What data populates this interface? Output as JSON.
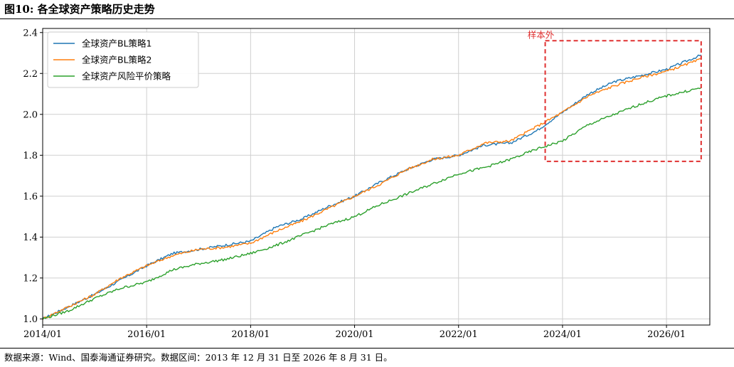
{
  "figure": {
    "title": "图10:  各全球资产策略历史走势",
    "source": "数据来源：Wind、国泰海通证券研究。数据区间：2013 年 12 月 31 日至 2026 年 8 月 31 日。"
  },
  "chart_data": {
    "type": "line",
    "title": "",
    "xlabel": "",
    "ylabel": "",
    "x_ticks": [
      "2014/01",
      "2016/01",
      "2018/01",
      "2020/01",
      "2022/01",
      "2024/01",
      "2026/01"
    ],
    "y_ticks": [
      "1.0",
      "1.2",
      "1.4",
      "1.6",
      "1.8",
      "2.0",
      "2.2",
      "2.4"
    ],
    "xlim": [
      "2014/01",
      "2026/11"
    ],
    "ylim": [
      0.97,
      2.42
    ],
    "grid": true,
    "legend_position": "top-left",
    "annotations": [
      {
        "text": "样本外",
        "box_x": [
          "2023/09",
          "2026/09"
        ],
        "box_y": [
          1.77,
          2.36
        ],
        "color": "#e03131"
      }
    ],
    "series": [
      {
        "name": "全球资产BL策略1",
        "color": "#1f77b4",
        "points": [
          [
            "2014/01",
            1.0
          ],
          [
            "2014/07",
            1.06
          ],
          [
            "2015/01",
            1.12
          ],
          [
            "2015/07",
            1.19
          ],
          [
            "2016/01",
            1.26
          ],
          [
            "2016/07",
            1.32
          ],
          [
            "2017/01",
            1.34
          ],
          [
            "2017/07",
            1.36
          ],
          [
            "2018/01",
            1.38
          ],
          [
            "2018/07",
            1.45
          ],
          [
            "2019/01",
            1.49
          ],
          [
            "2019/07",
            1.55
          ],
          [
            "2020/01",
            1.6
          ],
          [
            "2020/07",
            1.67
          ],
          [
            "2021/01",
            1.73
          ],
          [
            "2021/07",
            1.78
          ],
          [
            "2022/01",
            1.8
          ],
          [
            "2022/07",
            1.85
          ],
          [
            "2023/01",
            1.86
          ],
          [
            "2023/07",
            1.92
          ],
          [
            "2024/01",
            2.01
          ],
          [
            "2024/07",
            2.1
          ],
          [
            "2025/01",
            2.16
          ],
          [
            "2025/07",
            2.19
          ],
          [
            "2026/01",
            2.22
          ],
          [
            "2026/09",
            2.29
          ]
        ]
      },
      {
        "name": "全球资产BL策略2",
        "color": "#ff7f0e",
        "points": [
          [
            "2014/01",
            1.0
          ],
          [
            "2014/07",
            1.06
          ],
          [
            "2015/01",
            1.12
          ],
          [
            "2015/07",
            1.2
          ],
          [
            "2016/01",
            1.26
          ],
          [
            "2016/07",
            1.31
          ],
          [
            "2017/01",
            1.34
          ],
          [
            "2017/07",
            1.35
          ],
          [
            "2018/01",
            1.37
          ],
          [
            "2018/07",
            1.43
          ],
          [
            "2019/01",
            1.48
          ],
          [
            "2019/07",
            1.54
          ],
          [
            "2020/01",
            1.6
          ],
          [
            "2020/07",
            1.66
          ],
          [
            "2021/01",
            1.73
          ],
          [
            "2021/07",
            1.78
          ],
          [
            "2022/01",
            1.8
          ],
          [
            "2022/07",
            1.86
          ],
          [
            "2023/01",
            1.87
          ],
          [
            "2023/07",
            1.94
          ],
          [
            "2024/01",
            2.01
          ],
          [
            "2024/07",
            2.09
          ],
          [
            "2025/01",
            2.14
          ],
          [
            "2025/07",
            2.18
          ],
          [
            "2026/01",
            2.21
          ],
          [
            "2026/09",
            2.27
          ]
        ]
      },
      {
        "name": "全球资产风险平价策略",
        "color": "#2ca02c",
        "points": [
          [
            "2014/01",
            1.0
          ],
          [
            "2014/07",
            1.04
          ],
          [
            "2015/01",
            1.1
          ],
          [
            "2015/07",
            1.15
          ],
          [
            "2016/01",
            1.18
          ],
          [
            "2016/07",
            1.24
          ],
          [
            "2017/01",
            1.27
          ],
          [
            "2017/07",
            1.29
          ],
          [
            "2018/01",
            1.32
          ],
          [
            "2018/07",
            1.36
          ],
          [
            "2019/01",
            1.41
          ],
          [
            "2019/07",
            1.46
          ],
          [
            "2020/01",
            1.5
          ],
          [
            "2020/07",
            1.56
          ],
          [
            "2021/01",
            1.61
          ],
          [
            "2021/07",
            1.66
          ],
          [
            "2022/01",
            1.71
          ],
          [
            "2022/07",
            1.74
          ],
          [
            "2023/01",
            1.78
          ],
          [
            "2023/07",
            1.83
          ],
          [
            "2024/01",
            1.87
          ],
          [
            "2024/07",
            1.95
          ],
          [
            "2025/01",
            2.0
          ],
          [
            "2025/07",
            2.05
          ],
          [
            "2026/01",
            2.09
          ],
          [
            "2026/09",
            2.13
          ]
        ]
      }
    ]
  }
}
